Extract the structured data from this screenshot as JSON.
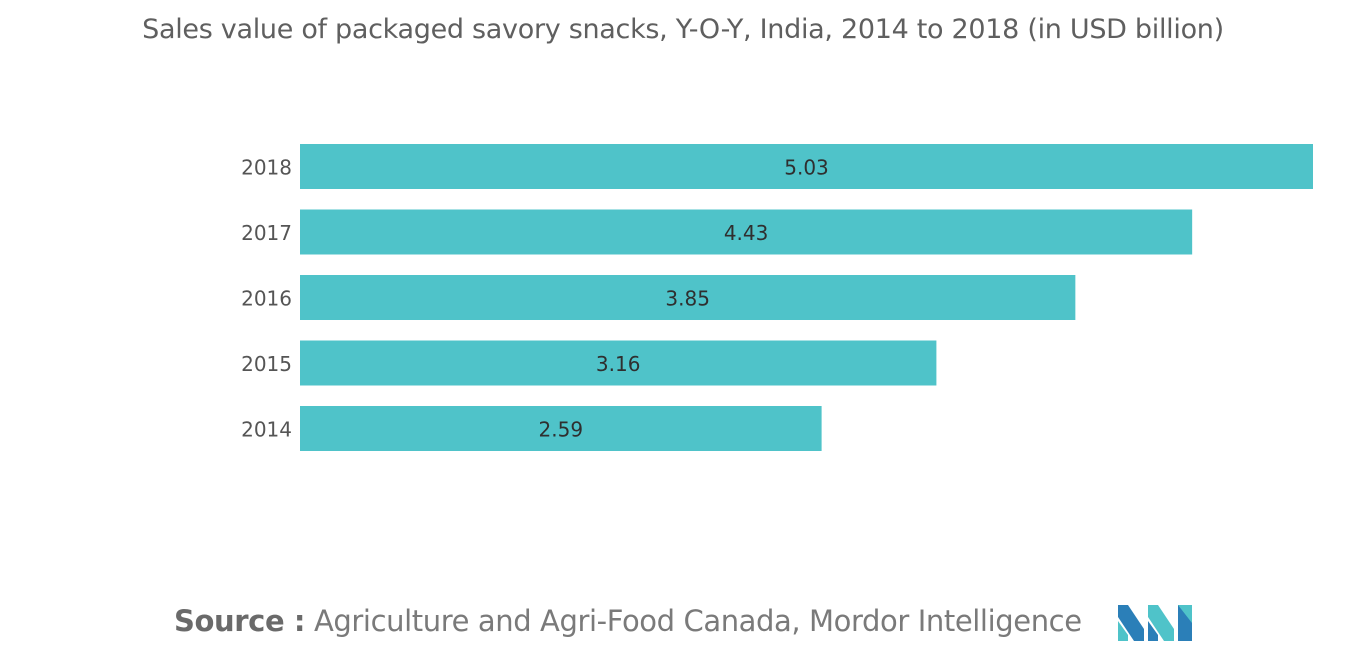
{
  "title": "Sales value of packaged savory snacks, Y-O-Y, India, 2014 to 2018 (in USD billion)",
  "source": {
    "label": "Source :",
    "text": "Agriculture and Agri-Food Canada, Mordor Intelligence"
  },
  "logo": {
    "icon": "mordor-intelligence-logo",
    "colors": [
      "#2b7fb8",
      "#4fc3c9"
    ]
  },
  "chart_data": {
    "type": "bar",
    "orientation": "horizontal",
    "categories": [
      "2018",
      "2017",
      "2016",
      "2015",
      "2014"
    ],
    "values": [
      5.03,
      4.43,
      3.85,
      3.16,
      2.59
    ],
    "data_labels": [
      "5.03",
      "4.43",
      "3.85",
      "3.16",
      "2.59"
    ],
    "title": "Sales value of packaged savory snacks, Y-O-Y, India, 2014 to 2018 (in USD billion)",
    "xlim": [
      0,
      5.03
    ],
    "grid": false,
    "legend": "none",
    "bar_color": "#4fc3c9"
  }
}
